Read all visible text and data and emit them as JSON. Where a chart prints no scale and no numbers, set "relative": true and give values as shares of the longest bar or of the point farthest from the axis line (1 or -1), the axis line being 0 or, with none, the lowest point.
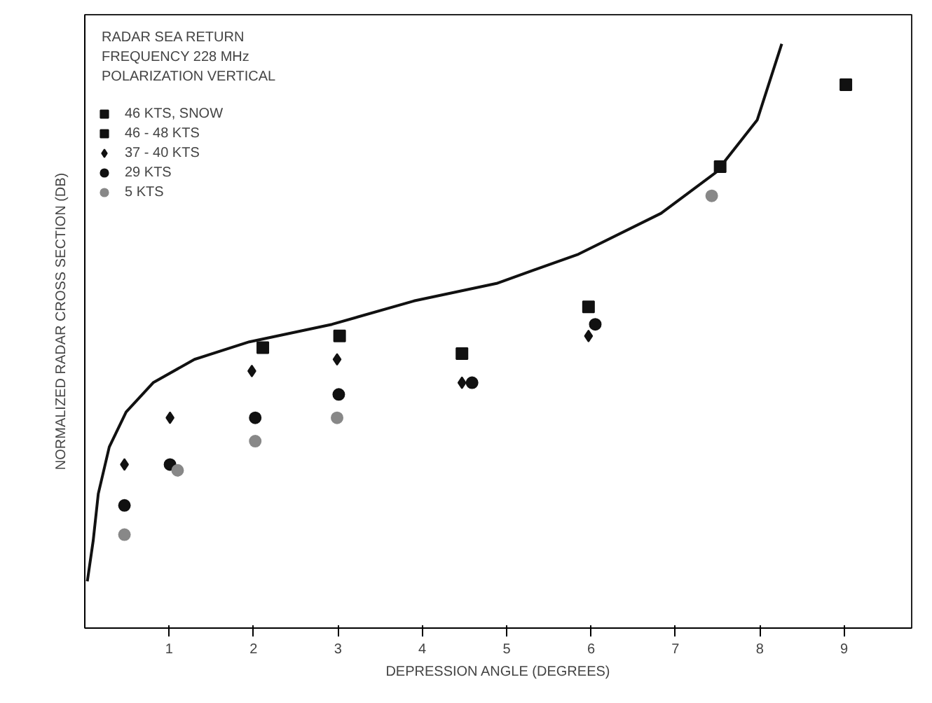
{
  "chart_data": {
    "type": "scatter",
    "relative": true,
    "xlabel": "DEPRESSION ANGLE (DEGREES)",
    "ylabel": "NORMALIZED RADAR CROSS SECTION (DB)",
    "annotations": [
      "RADAR SEA RETURN",
      "FREQUENCY 228 MHz",
      "POLARIZATION VERTICAL"
    ],
    "xlim": [
      0,
      9.8
    ],
    "xticks": [
      1,
      2,
      3,
      4,
      5,
      6,
      7,
      8,
      9
    ],
    "legend": "top left",
    "grid": false,
    "series": [
      {
        "name": "46 KTS, SNOW",
        "color": "#111111",
        "marker": "square",
        "x": [
          9.02
        ],
        "values": [
          0.93
        ]
      },
      {
        "name": "46 - 48 KTS",
        "color": "#111111",
        "marker": "square",
        "x": [
          2.11,
          3.02,
          4.47,
          5.97,
          7.53
        ],
        "values": [
          0.48,
          0.5,
          0.47,
          0.55,
          0.79
        ]
      },
      {
        "name": "37 - 40 KTS",
        "color": "#111111",
        "marker": "diamond",
        "x": [
          0.47,
          1.01,
          1.98,
          2.99,
          4.47,
          5.97
        ],
        "values": [
          0.28,
          0.36,
          0.44,
          0.46,
          0.42,
          0.5
        ]
      },
      {
        "name": "29 KTS",
        "color": "#111111",
        "marker": "circle",
        "x": [
          0.47,
          1.01,
          2.02,
          3.01,
          4.59,
          6.05
        ],
        "values": [
          0.21,
          0.28,
          0.36,
          0.4,
          0.42,
          0.52
        ]
      },
      {
        "name": "5 KTS",
        "color": "#888888",
        "marker": "circle",
        "x": [
          0.47,
          1.1,
          2.02,
          2.99,
          7.43
        ],
        "values": [
          0.16,
          0.27,
          0.32,
          0.36,
          0.74
        ]
      },
      {
        "type": "line",
        "color": "#111111",
        "x": [
          0.03,
          0.1,
          0.16,
          0.29,
          0.49,
          0.81,
          1.3,
          1.95,
          2.93,
          3.9,
          4.88,
          5.85,
          6.83,
          7.48,
          7.97,
          8.26
        ],
        "values": [
          0.08,
          0.15,
          0.23,
          0.31,
          0.37,
          0.42,
          0.46,
          0.49,
          0.52,
          0.56,
          0.59,
          0.64,
          0.71,
          0.78,
          0.87,
          1.0
        ]
      }
    ]
  }
}
